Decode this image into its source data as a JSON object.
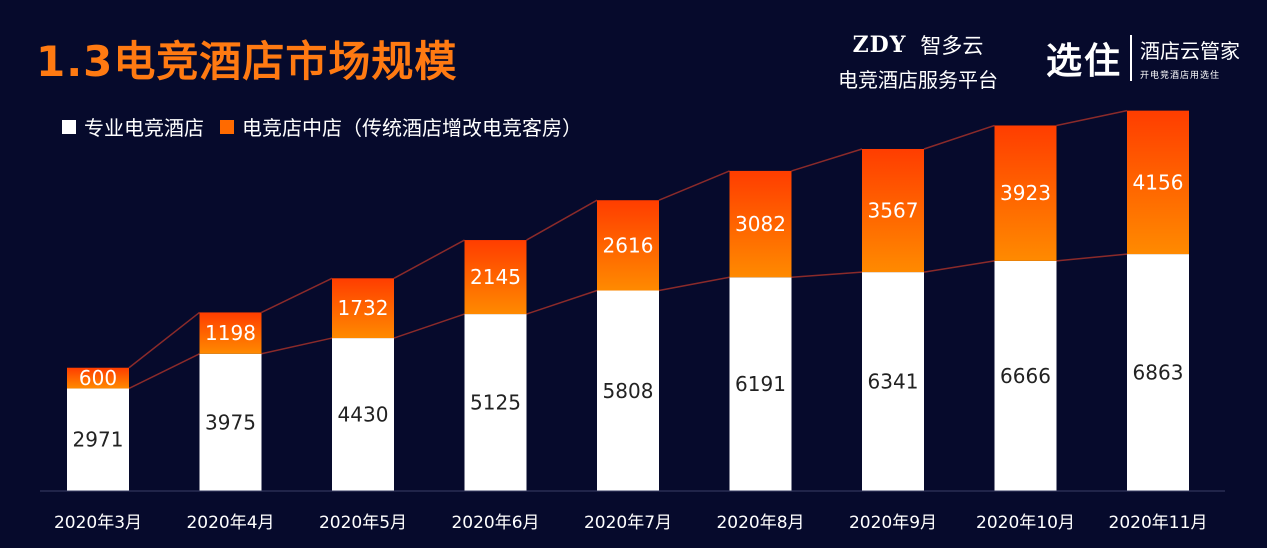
{
  "title": "1.3电竞酒店市场规模",
  "brand_zdy": {
    "logo": "ZDY",
    "name": "智多云",
    "subtitle": "电竞酒店服务平台"
  },
  "brand_xz": {
    "logo": "选住",
    "name": "酒店云管家",
    "tagline": "开电竞酒店用选住"
  },
  "colors": {
    "background": "#060a2c",
    "title": "#ff7a12",
    "professional": "#ffffff",
    "in_store": "#ff6a00",
    "in_store_top": "#ff3d00",
    "trend_line": "#8a2a2a"
  },
  "chart_data": {
    "type": "bar",
    "stacked": true,
    "categories": [
      "2020年3月",
      "2020年4月",
      "2020年5月",
      "2020年6月",
      "2020年7月",
      "2020年8月",
      "2020年9月",
      "2020年10月",
      "2020年11月"
    ],
    "series": [
      {
        "name": "专业电竞酒店",
        "values": [
          2971,
          3975,
          4430,
          5125,
          5808,
          6191,
          6341,
          6666,
          6863
        ]
      },
      {
        "name": "电竞店中店（传统酒店增改电竞客房）",
        "values": [
          600,
          1198,
          1732,
          2145,
          2616,
          3082,
          3567,
          3923,
          4156
        ]
      }
    ],
    "title": "1.3电竞酒店市场规模",
    "xlabel": "",
    "ylabel": "",
    "ylim": [
      0,
      11500
    ],
    "grid": false,
    "legend_position": "top-left"
  }
}
